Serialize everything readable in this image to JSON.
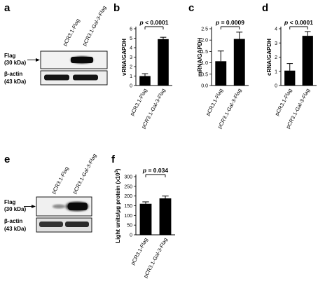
{
  "panels": {
    "a": {
      "letter": "a",
      "lanes": [
        "pCR3.1-Flag",
        "pCR3.1-Gal-3-Flag"
      ],
      "blots": [
        {
          "name": "Flag",
          "sub": "(30 kDa)"
        },
        {
          "name": "β-actin",
          "sub": "(43 kDa)"
        }
      ]
    },
    "e": {
      "letter": "e",
      "lanes": [
        "pCR3.1-Flag",
        "pCR3.1-Gal-3-Flag"
      ],
      "blots": [
        {
          "name": "Flag",
          "sub": "(30 kDa)"
        },
        {
          "name": "β-actin",
          "sub": "(43 kDa)"
        }
      ]
    }
  },
  "chart_data": [
    {
      "id": "b",
      "letter": "b",
      "type": "bar",
      "categories": [
        "pCR3.1-Flag",
        "pCR3.1-Gal-3-Flag"
      ],
      "values": [
        1.0,
        4.9
      ],
      "errors": [
        0.25,
        0.2
      ],
      "ylabel": "vRNA/GAPDH",
      "ylim": [
        0,
        6
      ],
      "ticks": [
        0,
        1,
        2,
        3,
        4,
        5,
        6
      ],
      "significance": "p < 0.0001"
    },
    {
      "id": "c",
      "letter": "c",
      "type": "bar",
      "categories": [
        "pCR3.1-Flag",
        "pCR3.1-Gal-3-Flag"
      ],
      "values": [
        1.07,
        2.05
      ],
      "errors": [
        0.45,
        0.3
      ],
      "ylabel": "mRNA/GAPDH",
      "ylim": [
        0,
        2.5
      ],
      "ticks": [
        0.0,
        0.5,
        1.0,
        1.5,
        2.0,
        2.5
      ],
      "significance": "p = 0.0009"
    },
    {
      "id": "d",
      "letter": "d",
      "type": "bar",
      "categories": [
        "pCR3.1-Flag",
        "pCR3.1-Gal-3-Flag"
      ],
      "values": [
        1.05,
        3.5
      ],
      "errors": [
        0.5,
        0.3
      ],
      "ylabel": "cRNA/GAPDH",
      "ylim": [
        0,
        4
      ],
      "ticks": [
        0,
        1,
        2,
        3,
        4
      ],
      "significance": "p < 0.0001"
    },
    {
      "id": "f",
      "letter": "f",
      "type": "bar",
      "categories": [
        "pCR3.1-Flag",
        "pCR3.1-Gal-3-Flag"
      ],
      "values": [
        160,
        188
      ],
      "errors": [
        10,
        12
      ],
      "ylabel": "Light units/µg protein (x10",
      "ylabel_sup": "3",
      "ylabel_end": ")",
      "ylim": [
        0,
        300
      ],
      "ticks": [
        0,
        50,
        100,
        150,
        200,
        250,
        300
      ],
      "significance": "p = 0.034"
    }
  ]
}
